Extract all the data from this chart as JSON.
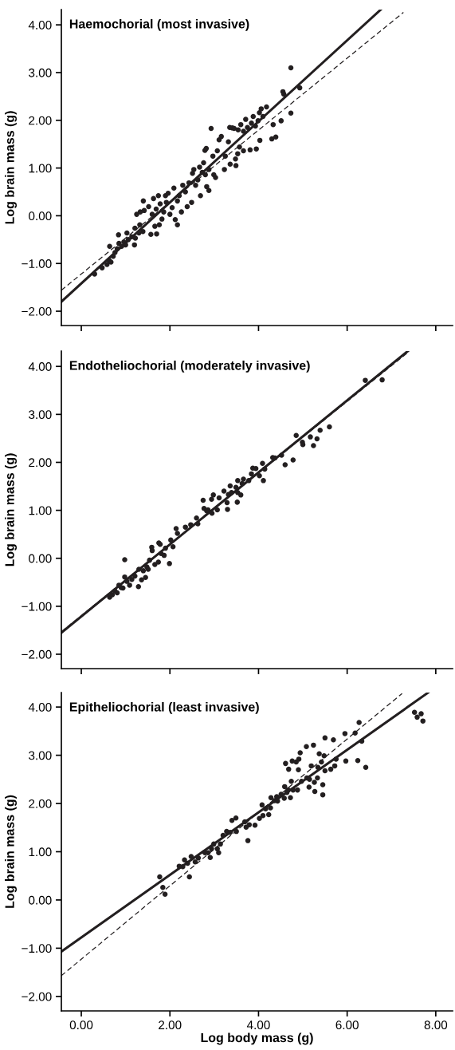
{
  "chart_data": [
    {
      "type": "scatter",
      "title": "Haemochorial (most invasive)",
      "ylabel": "Log brain mass (g)",
      "xlim": [
        -0.45,
        8.38
      ],
      "ylim": [
        -2.3,
        4.32
      ],
      "xticks": [
        {
          "value": 0,
          "label": null
        },
        {
          "value": 2,
          "label": null
        },
        {
          "value": 4,
          "label": null
        },
        {
          "value": 6,
          "label": null
        },
        {
          "value": 8,
          "label": null
        }
      ],
      "yticks": [
        {
          "value": -2,
          "label": "−2.00"
        },
        {
          "value": -1,
          "label": "−1.00"
        },
        {
          "value": 0,
          "label": "0.00"
        },
        {
          "value": 1,
          "label": "1.00"
        },
        {
          "value": 2,
          "label": "2.00"
        },
        {
          "value": 3,
          "label": "3.00"
        },
        {
          "value": 4,
          "label": "4.00"
        }
      ],
      "tick_labels": "y",
      "series": [
        {
          "marker": "circle",
          "color": "#231f20",
          "x": [
            0.3,
            0.47,
            0.58,
            0.64,
            0.63,
            0.67,
            0.72,
            0.76,
            0.81,
            0.84,
            0.85,
            0.91,
            0.96,
            1.0,
            1.03,
            1.06,
            1.14,
            1.2,
            1.22,
            1.21,
            1.3,
            1.32,
            1.25,
            1.33,
            1.4,
            1.42,
            1.39,
            1.52,
            1.57,
            1.6,
            1.63,
            1.66,
            1.69,
            1.7,
            1.74,
            1.76,
            1.78,
            1.82,
            1.86,
            1.9,
            1.92,
            1.96,
            2.0,
            2.05,
            2.09,
            2.12,
            2.17,
            2.17,
            2.21,
            2.26,
            2.29,
            2.35,
            2.39,
            2.43,
            2.49,
            2.51,
            2.54,
            2.58,
            2.63,
            2.69,
            2.67,
            2.73,
            2.76,
            2.8,
            2.83,
            2.88,
            2.79,
            2.82,
            2.88,
            2.93,
            2.97,
            2.99,
            3.03,
            3.07,
            3.11,
            3.16,
            3.23,
            3.25,
            3.32,
            3.36,
            3.35,
            3.41,
            3.45,
            3.48,
            3.49,
            3.53,
            3.54,
            3.57,
            3.6,
            3.66,
            3.66,
            3.71,
            3.75,
            3.81,
            3.84,
            3.88,
            3.93,
            3.95,
            3.99,
            4.03,
            4.02,
            4.06,
            4.1,
            4.18,
            4.3,
            4.33,
            4.39,
            4.51,
            4.55,
            4.57,
            4.73,
            4.73,
            4.93
          ],
          "values": [
            -1.22,
            -1.09,
            -1.02,
            -0.64,
            -0.94,
            -0.97,
            -0.85,
            -0.77,
            -0.69,
            -0.4,
            -0.58,
            -0.64,
            -0.55,
            -0.61,
            -0.36,
            -0.5,
            -0.44,
            -0.61,
            -0.47,
            -0.26,
            -0.36,
            -0.19,
            0.03,
            0.08,
            0.31,
            0.11,
            -0.33,
            0.19,
            -0.39,
            0.03,
            0.36,
            -0.22,
            0.14,
            -0.38,
            0.42,
            -0.19,
            0.25,
            -0.07,
            0.08,
            0.42,
            0.28,
            0.47,
            0.03,
            0.17,
            0.58,
            -0.08,
            -0.19,
            0.31,
            0.42,
            0.08,
            0.64,
            0.5,
            0.19,
            0.69,
            0.28,
            0.89,
            0.97,
            0.64,
            0.75,
            0.42,
            1.02,
            0.91,
            1.11,
            0.86,
            0.61,
            0.53,
            1.37,
            1.41,
            0.97,
            1.83,
            1.25,
            0.86,
            0.8,
            1.36,
            1.59,
            1.66,
            0.97,
            1.25,
            1.55,
            1.08,
            1.85,
            1.84,
            1.83,
            1.19,
            1.05,
            1.3,
            1.8,
            1.44,
            1.91,
            1.36,
            1.77,
            2.02,
            1.85,
            1.38,
            1.94,
            2.08,
            1.88,
            1.4,
            1.99,
            1.58,
            2.16,
            2.24,
            2.08,
            2.28,
            1.61,
            1.91,
            1.65,
            1.99,
            2.6,
            2.55,
            2.15,
            3.1,
            2.68
          ]
        },
        {
          "type": "line",
          "color": "#231f20",
          "line_style": "solid",
          "x": [
            -0.45,
            6.76
          ],
          "values": [
            -1.8,
            4.32
          ]
        },
        {
          "type": "line",
          "color": "#231f20",
          "line_style": "dashed",
          "x": [
            -0.45,
            7.27
          ],
          "values": [
            -1.56,
            4.26
          ]
        }
      ]
    },
    {
      "type": "scatter",
      "title": "Endotheliochorial (moderately invasive)",
      "ylabel": "Log brain mass (g)",
      "xlim": [
        -0.45,
        8.38
      ],
      "ylim": [
        -2.3,
        4.32
      ],
      "xticks": [
        {
          "value": 0,
          "label": null
        },
        {
          "value": 2,
          "label": null
        },
        {
          "value": 4,
          "label": null
        },
        {
          "value": 6,
          "label": null
        },
        {
          "value": 8,
          "label": null
        }
      ],
      "yticks": [
        {
          "value": -2,
          "label": "−2.00"
        },
        {
          "value": -1,
          "label": "−1.00"
        },
        {
          "value": 0,
          "label": "0.00"
        },
        {
          "value": 1,
          "label": "1.00"
        },
        {
          "value": 2,
          "label": "2.00"
        },
        {
          "value": 3,
          "label": "3.00"
        },
        {
          "value": 4,
          "label": "4.00"
        }
      ],
      "tick_labels": "y",
      "series": [
        {
          "marker": "circle",
          "color": "#231f20",
          "x": [
            0.64,
            0.7,
            0.76,
            0.81,
            0.85,
            0.9,
            0.94,
            0.98,
            0.98,
            1.03,
            1.09,
            1.14,
            1.21,
            1.29,
            1.3,
            1.36,
            1.4,
            1.45,
            1.48,
            1.51,
            1.54,
            1.59,
            1.6,
            1.66,
            1.74,
            1.75,
            1.78,
            1.8,
            1.87,
            1.9,
            1.99,
            2.02,
            2.07,
            2.14,
            2.17,
            2.35,
            2.47,
            2.6,
            2.63,
            2.75,
            2.77,
            2.83,
            2.86,
            2.94,
            2.95,
            2.98,
            3.07,
            3.11,
            3.22,
            3.29,
            3.3,
            3.32,
            3.36,
            3.39,
            3.49,
            3.52,
            3.53,
            3.53,
            3.6,
            3.63,
            3.66,
            3.78,
            3.84,
            3.87,
            3.94,
            4.02,
            4.09,
            4.11,
            4.14,
            4.32,
            4.37,
            4.52,
            4.6,
            4.78,
            4.85,
            4.99,
            5.0,
            5.17,
            5.24,
            5.32,
            5.39,
            5.6,
            6.41,
            6.79
          ],
          "values": [
            -0.81,
            -0.76,
            -0.68,
            -0.72,
            -0.56,
            -0.61,
            -0.62,
            -0.39,
            -0.03,
            -0.48,
            -0.56,
            -0.44,
            -0.37,
            -0.59,
            -0.23,
            -0.45,
            -0.26,
            -0.4,
            -0.18,
            -0.23,
            -0.04,
            0.23,
            0.16,
            -0.13,
            -0.08,
            0.32,
            0.29,
            0.1,
            0.06,
            0.21,
            -0.11,
            0.38,
            0.24,
            0.62,
            0.52,
            0.65,
            0.7,
            0.84,
            0.72,
            1.21,
            1.04,
            0.99,
            1.01,
            1.23,
            0.94,
            1.32,
            1.01,
            1.26,
            1.4,
            1.16,
            1.02,
            1.33,
            1.51,
            1.37,
            1.48,
            1.17,
            1.37,
            1.62,
            1.32,
            1.56,
            1.65,
            1.62,
            1.76,
            1.88,
            1.87,
            1.72,
            1.98,
            1.62,
            1.86,
            2.1,
            2.09,
            2.15,
            1.95,
            2.05,
            2.56,
            2.42,
            2.37,
            2.53,
            2.35,
            2.49,
            2.67,
            2.74,
            3.71,
            3.72
          ]
        },
        {
          "type": "line",
          "color": "#231f20",
          "line_style": "solid",
          "x": [
            -0.45,
            7.37
          ],
          "values": [
            -1.55,
            4.32
          ]
        },
        {
          "type": "line",
          "color": "#231f20",
          "line_style": "dashed",
          "x": [
            -0.45,
            7.37
          ],
          "values": [
            -1.53,
            4.29
          ]
        }
      ]
    },
    {
      "type": "scatter",
      "title": "Epitheliochorial (least invasive)",
      "xlabel": "Log body mass (g)",
      "ylabel": "Log brain mass (g)",
      "xlim": [
        -0.45,
        8.38
      ],
      "ylim": [
        -2.3,
        4.3
      ],
      "xticks": [
        {
          "value": 0,
          "label": "0.00"
        },
        {
          "value": 2,
          "label": "2.00"
        },
        {
          "value": 4,
          "label": "4.00"
        },
        {
          "value": 6,
          "label": "6.00"
        },
        {
          "value": 8,
          "label": "8.00"
        }
      ],
      "yticks": [
        {
          "value": -2,
          "label": "−2.00"
        },
        {
          "value": -1,
          "label": "−1.00"
        },
        {
          "value": 0,
          "label": "0.00"
        },
        {
          "value": 1,
          "label": "1.00"
        },
        {
          "value": 2,
          "label": "2.00"
        },
        {
          "value": 3,
          "label": "3.00"
        },
        {
          "value": 4,
          "label": "4.00"
        }
      ],
      "series": [
        {
          "marker": "circle",
          "color": "#231f20",
          "x": [
            1.77,
            1.84,
            1.89,
            2.21,
            2.29,
            2.33,
            2.4,
            2.44,
            2.48,
            2.57,
            2.64,
            2.79,
            2.86,
            2.91,
            2.94,
            2.99,
            3.07,
            3.1,
            3.14,
            3.2,
            3.28,
            3.36,
            3.4,
            3.49,
            3.5,
            3.69,
            3.72,
            3.76,
            3.79,
            3.92,
            4.02,
            4.08,
            4.1,
            4.16,
            4.23,
            4.27,
            4.28,
            4.36,
            4.41,
            4.43,
            4.51,
            4.58,
            4.59,
            4.61,
            4.64,
            4.67,
            4.68,
            4.72,
            4.74,
            4.76,
            4.78,
            4.85,
            4.88,
            4.9,
            4.91,
            4.94,
            4.97,
            5.08,
            5.09,
            5.14,
            5.15,
            5.19,
            5.24,
            5.26,
            5.27,
            5.33,
            5.34,
            5.37,
            5.42,
            5.45,
            5.45,
            5.48,
            5.5,
            5.5,
            5.63,
            5.69,
            5.72,
            5.75,
            5.95,
            5.97,
            6.18,
            6.24,
            6.27,
            6.33,
            6.42,
            7.52,
            7.58,
            7.67,
            7.71
          ],
          "values": [
            0.48,
            0.26,
            0.12,
            0.7,
            0.69,
            0.83,
            0.76,
            0.48,
            0.9,
            0.79,
            0.87,
            0.98,
            0.98,
            0.88,
            1.06,
            1.16,
            1.06,
            0.98,
            1.16,
            1.34,
            1.42,
            1.4,
            1.65,
            1.7,
            1.42,
            1.62,
            1.51,
            1.23,
            1.56,
            1.55,
            1.69,
            1.97,
            1.75,
            1.89,
            1.77,
            1.91,
            2.12,
            2.06,
            2.14,
            2.05,
            2.19,
            2.11,
            2.35,
            2.83,
            2.23,
            2.28,
            2.71,
            2.12,
            2.46,
            2.88,
            2.28,
            2.86,
            2.28,
            2.7,
            2.92,
            3.05,
            2.46,
            3.18,
            2.53,
            2.34,
            2.5,
            2.78,
            3.21,
            2.44,
            2.25,
            2.53,
            2.75,
            3.03,
            2.86,
            2.39,
            2.18,
            2.99,
            3.36,
            2.68,
            2.71,
            3.32,
            2.78,
            2.92,
            3.45,
            2.88,
            3.46,
            2.89,
            3.68,
            3.29,
            2.75,
            3.89,
            3.79,
            3.86,
            3.71
          ]
        },
        {
          "type": "line",
          "color": "#231f20",
          "line_style": "solid",
          "x": [
            -0.45,
            7.83
          ],
          "values": [
            -1.07,
            4.3
          ]
        },
        {
          "type": "line",
          "color": "#231f20",
          "line_style": "dashed",
          "x": [
            -0.45,
            7.24
          ],
          "values": [
            -1.57,
            4.28
          ]
        }
      ]
    }
  ]
}
